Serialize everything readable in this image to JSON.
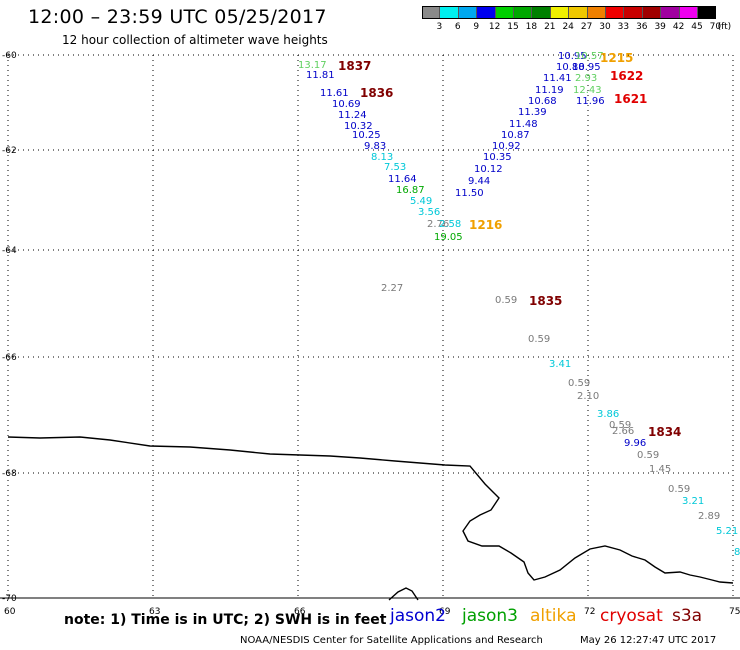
{
  "header": {
    "title": "12:00 – 23:59 UTC 05/25/2017",
    "subtitle": "12 hour collection of altimeter wave heights"
  },
  "color_scale": {
    "labels": [
      "3",
      "6",
      "9",
      "12",
      "15",
      "18",
      "21",
      "24",
      "27",
      "30",
      "33",
      "36",
      "39",
      "42",
      "45",
      "70"
    ],
    "unit": "(ft)",
    "colors": [
      "#8a8a8a",
      "#00f0f0",
      "#00a8f0",
      "#0000f0",
      "#00d000",
      "#00a800",
      "#008000",
      "#f0f000",
      "#f0c800",
      "#f08000",
      "#f00000",
      "#c80000",
      "#a00000",
      "#a000a0",
      "#f000f0",
      "#000000"
    ]
  },
  "map": {
    "lat_labels": [
      "-60",
      "-62",
      "-64",
      "-66",
      "-68",
      "-70"
    ],
    "lon_labels": [
      "60",
      "63",
      "66",
      "69",
      "72",
      "75"
    ],
    "colors": {
      "coast": "#000000",
      "grid": "#000000",
      "gray": "#7a7a7a",
      "cyan": "#00c8d8",
      "blue": "#0000c8",
      "green": "#00a800",
      "lightgreen": "#60d060",
      "orange": "#f0a000",
      "red": "#e00000",
      "darkred": "#800000"
    },
    "track_times": [
      {
        "text": "1837",
        "color": "darkred"
      },
      {
        "text": "1836",
        "color": "darkred"
      },
      {
        "text": "1215",
        "color": "orange"
      },
      {
        "text": "1622",
        "color": "red"
      },
      {
        "text": "1621",
        "color": "red"
      },
      {
        "text": "1216",
        "color": "orange"
      },
      {
        "text": "1835",
        "color": "darkred"
      },
      {
        "text": "1834",
        "color": "darkred"
      }
    ],
    "wave_heights": [
      {
        "text": "13.17",
        "color": "lightgreen"
      },
      {
        "text": "11.81",
        "color": "blue"
      },
      {
        "text": "11.61",
        "color": "blue"
      },
      {
        "text": "10.69",
        "color": "blue"
      },
      {
        "text": "11.24",
        "color": "blue"
      },
      {
        "text": "10.32",
        "color": "blue"
      },
      {
        "text": "10.25",
        "color": "blue"
      },
      {
        "text": "9.83",
        "color": "blue"
      },
      {
        "text": "8.13",
        "color": "cyan"
      },
      {
        "text": "7.53",
        "color": "cyan"
      },
      {
        "text": "11.64",
        "color": "blue"
      },
      {
        "text": "16.87",
        "color": "green"
      },
      {
        "text": "5.49",
        "color": "cyan"
      },
      {
        "text": "3.56",
        "color": "cyan"
      },
      {
        "text": "2.76",
        "color": "gray"
      },
      {
        "text": "2.58",
        "color": "cyan"
      },
      {
        "text": "19.05",
        "color": "green"
      },
      {
        "text": "10.95",
        "color": "blue"
      },
      {
        "text": "10.57",
        "color": "lightgreen"
      },
      {
        "text": "10.88",
        "color": "blue"
      },
      {
        "text": "10.95",
        "color": "blue"
      },
      {
        "text": "11.41",
        "color": "blue"
      },
      {
        "text": "2.93",
        "color": "lightgreen"
      },
      {
        "text": "11.19",
        "color": "blue"
      },
      {
        "text": "12.43",
        "color": "lightgreen"
      },
      {
        "text": "10.68",
        "color": "blue"
      },
      {
        "text": "11.96",
        "color": "blue"
      },
      {
        "text": "11.39",
        "color": "blue"
      },
      {
        "text": "11.48",
        "color": "blue"
      },
      {
        "text": "10.87",
        "color": "blue"
      },
      {
        "text": "10.92",
        "color": "blue"
      },
      {
        "text": "10.35",
        "color": "blue"
      },
      {
        "text": "10.12",
        "color": "blue"
      },
      {
        "text": "9.44",
        "color": "blue"
      },
      {
        "text": "11.50",
        "color": "blue"
      },
      {
        "text": "2.27",
        "color": "gray"
      },
      {
        "text": "0.59",
        "color": "gray"
      },
      {
        "text": "0.59",
        "color": "gray"
      },
      {
        "text": "3.41",
        "color": "cyan"
      },
      {
        "text": "0.59",
        "color": "gray"
      },
      {
        "text": "2.10",
        "color": "gray"
      },
      {
        "text": "3.86",
        "color": "cyan"
      },
      {
        "text": "0.59",
        "color": "gray"
      },
      {
        "text": "2.66",
        "color": "gray"
      },
      {
        "text": "9.96",
        "color": "blue"
      },
      {
        "text": "0.59",
        "color": "gray"
      },
      {
        "text": "1.45",
        "color": "gray"
      },
      {
        "text": "0.59",
        "color": "gray"
      },
      {
        "text": "3.21",
        "color": "cyan"
      },
      {
        "text": "2.89",
        "color": "gray"
      },
      {
        "text": "5.21",
        "color": "cyan"
      },
      {
        "text": "8",
        "color": "cyan"
      }
    ]
  },
  "footer": {
    "note": "note: 1) Time is in UTC; 2) SWH is in feet",
    "satellites": [
      {
        "name": "jason2",
        "color": "#0000d0"
      },
      {
        "name": "jason3",
        "color": "#00a000"
      },
      {
        "name": "altika",
        "color": "#f0a000"
      },
      {
        "name": "cryosat",
        "color": "#e00000"
      },
      {
        "name": "s3a",
        "color": "#800000"
      }
    ],
    "credit": "NOAA/NESDIS Center for Satellite Applications and Research",
    "timestamp": "May 26 12:27:47 UTC 2017"
  }
}
